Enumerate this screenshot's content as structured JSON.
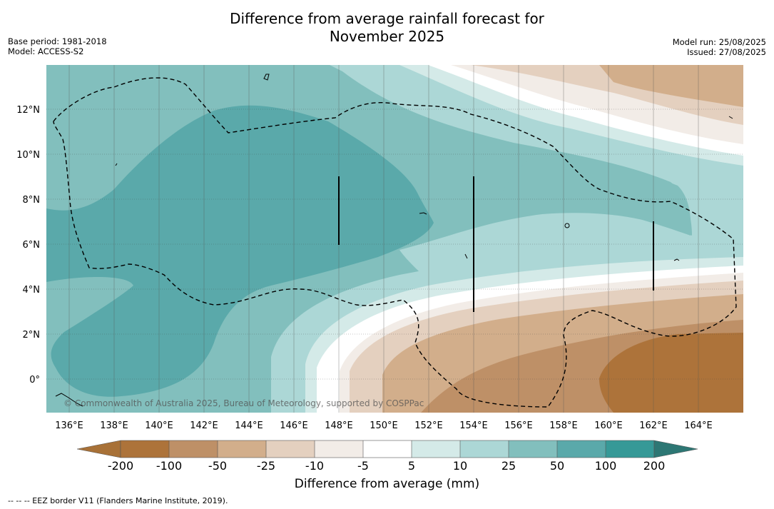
{
  "title": {
    "line1": "Difference from average rainfall forecast for",
    "line2": "November 2025"
  },
  "meta": {
    "base_period": "Base period: 1981-2018",
    "model": "Model: ACCESS-S2",
    "model_run": "Model run: 25/08/2025",
    "issued": "Issued: 27/08/2025"
  },
  "credit": "© Commonwealth of Australia 2025, Bureau of Meteorology, supported by COSPPac",
  "axes": {
    "x_ticks": [
      "136°E",
      "138°E",
      "140°E",
      "142°E",
      "144°E",
      "146°E",
      "148°E",
      "150°E",
      "152°E",
      "154°E",
      "156°E",
      "158°E",
      "160°E",
      "162°E",
      "164°E"
    ],
    "y_ticks": [
      "12°N",
      "10°N",
      "8°N",
      "6°N",
      "4°N",
      "2°N",
      "0°"
    ],
    "lon_range": [
      134.8,
      165.9
    ],
    "lat_range": [
      -1.5,
      14
    ]
  },
  "colorbar": {
    "title": "Difference from average (mm)",
    "labels": [
      "-200",
      "-100",
      "-50",
      "-25",
      "-10",
      "-5",
      "5",
      "10",
      "25",
      "50",
      "100",
      "200"
    ],
    "colors": [
      "#a87137",
      "#ad733a",
      "#be9067",
      "#d2ae8b",
      "#e4d0bf",
      "#f2ece7",
      "#ffffff",
      "#d4eae8",
      "#acd7d6",
      "#82bfbd",
      "#5aa9aa",
      "#369997",
      "#2d7774"
    ]
  },
  "legend": {
    "eez_line": "--  --  -- EEZ border V11 (Flanders Marine Institute, 2019)."
  }
}
